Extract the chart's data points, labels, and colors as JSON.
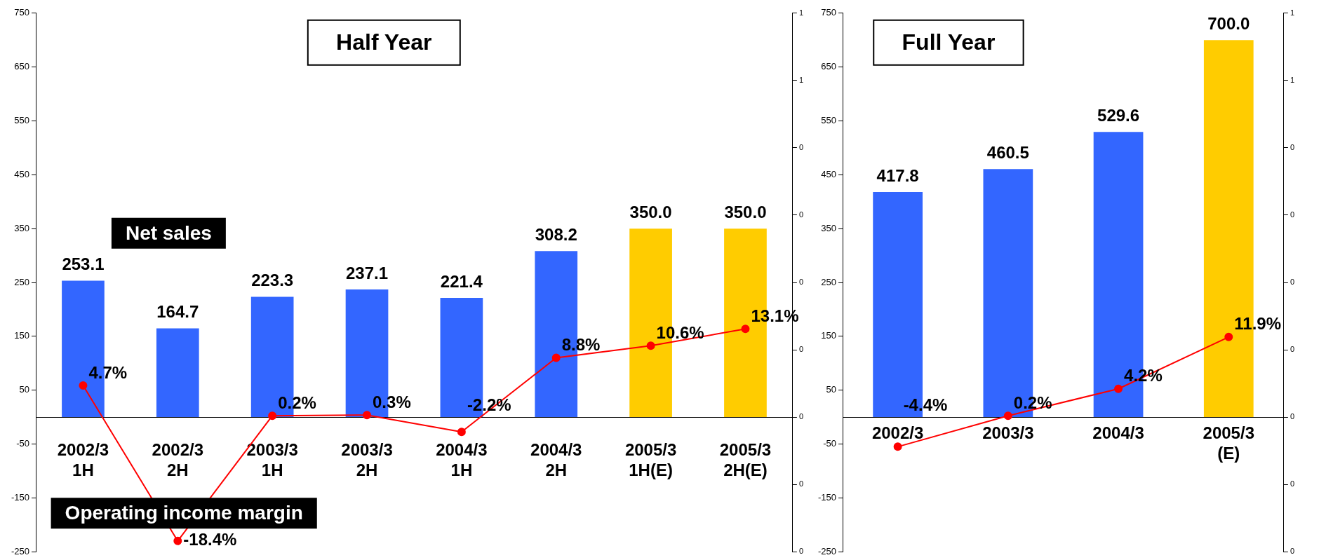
{
  "chart_data": [
    {
      "type": "bar",
      "title": "Half Year",
      "categories": [
        "2002/3\n1H",
        "2002/3\n2H",
        "2003/3\n1H",
        "2003/3\n2H",
        "2004/3\n1H",
        "2004/3\n2H",
        "2005/3\n1H(E)",
        "2005/3\n2H(E)"
      ],
      "series": [
        {
          "name": "Net sales",
          "colors": [
            "#3366ff",
            "#3366ff",
            "#3366ff",
            "#3366ff",
            "#3366ff",
            "#3366ff",
            "#ffcc00",
            "#ffcc00"
          ],
          "values": [
            253.1,
            164.7,
            223.3,
            237.1,
            221.4,
            308.2,
            350.0,
            350.0
          ],
          "value_labels": [
            "253.1",
            "164.7",
            "223.3",
            "237.1",
            "221.4",
            "308.2",
            "350.0",
            "350.0"
          ]
        },
        {
          "name": "Operating income margin",
          "type": "line",
          "axis": "y2",
          "color": "#ff0000",
          "values": [
            0.047,
            -0.184,
            0.002,
            0.003,
            -0.022,
            0.088,
            0.106,
            0.131
          ],
          "value_labels": [
            "4.7%",
            "-18.4%",
            "0.2%",
            "0.3%",
            "-2.2%",
            "8.8%",
            "10.6%",
            "13.1%"
          ]
        }
      ],
      "ylim": [
        -250,
        750
      ],
      "yticks": [
        -250,
        -150,
        -50,
        50,
        150,
        250,
        350,
        450,
        550,
        650,
        750
      ],
      "y2lim": [
        -0.2,
        0.6
      ],
      "y2ticks": [
        {
          "value": -0.2,
          "label": "0"
        },
        {
          "value": -0.1,
          "label": "0"
        },
        {
          "value": 0,
          "label": "0"
        },
        {
          "value": 0.1,
          "label": "0"
        },
        {
          "value": 0.2,
          "label": "0"
        },
        {
          "value": 0.3,
          "label": "0"
        },
        {
          "value": 0.4,
          "label": "0"
        },
        {
          "value": 0.5,
          "label": "1"
        },
        {
          "value": 0.6,
          "label": "1"
        }
      ],
      "marker": "circle"
    },
    {
      "type": "bar",
      "title": "Full Year",
      "categories": [
        "2002/3",
        "2003/3",
        "2004/3",
        "2005/3\n(E)"
      ],
      "series": [
        {
          "colors": [
            "#3366ff",
            "#3366ff",
            "#3366ff",
            "#ffcc00"
          ],
          "values": [
            417.8,
            460.5,
            529.6,
            700.0
          ],
          "value_labels": [
            "417.8",
            "460.5",
            "529.6",
            "700.0"
          ]
        },
        {
          "type": "line",
          "axis": "y2",
          "color": "#ff0000",
          "values": [
            -0.044,
            0.002,
            0.042,
            0.119
          ],
          "value_labels": [
            "-4.4%",
            "0.2%",
            "4.2%",
            "11.9%"
          ]
        }
      ],
      "ylim": [
        -250,
        750
      ],
      "yticks": [
        -250,
        -150,
        -50,
        50,
        150,
        250,
        350,
        450,
        550,
        650,
        750
      ],
      "y2lim": [
        -0.2,
        0.6
      ],
      "y2ticks": [
        {
          "value": -0.2,
          "label": "0"
        },
        {
          "value": -0.1,
          "label": "0"
        },
        {
          "value": 0,
          "label": "0"
        },
        {
          "value": 0.1,
          "label": "0"
        },
        {
          "value": 0.2,
          "label": "0"
        },
        {
          "value": 0.3,
          "label": "0"
        },
        {
          "value": 0.4,
          "label": "0"
        },
        {
          "value": 0.5,
          "label": "1"
        },
        {
          "value": 0.6,
          "label": "1"
        }
      ],
      "marker": "circle"
    }
  ]
}
